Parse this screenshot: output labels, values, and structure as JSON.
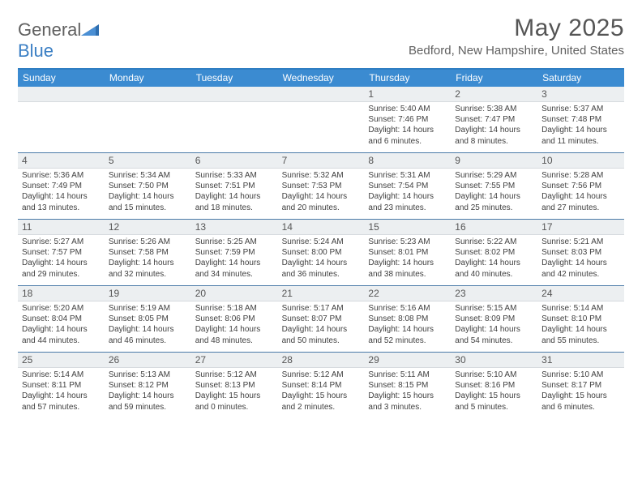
{
  "logo": {
    "text_a": "General",
    "text_b": "Blue"
  },
  "title": "May 2025",
  "location": "Bedford, New Hampshire, United States",
  "colors": {
    "header_bg": "#3b8bd1",
    "header_border_top": "#2f7ec2",
    "numband_bg": "#eceff1",
    "week_divider": "#4a7aa8",
    "text": "#404040",
    "background": "#ffffff"
  },
  "dayNames": [
    "Sunday",
    "Monday",
    "Tuesday",
    "Wednesday",
    "Thursday",
    "Friday",
    "Saturday"
  ],
  "weeks": [
    {
      "nums": [
        "",
        "",
        "",
        "",
        "1",
        "2",
        "3"
      ],
      "cells": [
        {
          "blank": true
        },
        {
          "blank": true
        },
        {
          "blank": true
        },
        {
          "blank": true
        },
        {
          "sunrise": "Sunrise: 5:40 AM",
          "sunset": "Sunset: 7:46 PM",
          "daylight": "Daylight: 14 hours and 6 minutes."
        },
        {
          "sunrise": "Sunrise: 5:38 AM",
          "sunset": "Sunset: 7:47 PM",
          "daylight": "Daylight: 14 hours and 8 minutes."
        },
        {
          "sunrise": "Sunrise: 5:37 AM",
          "sunset": "Sunset: 7:48 PM",
          "daylight": "Daylight: 14 hours and 11 minutes."
        }
      ]
    },
    {
      "nums": [
        "4",
        "5",
        "6",
        "7",
        "8",
        "9",
        "10"
      ],
      "cells": [
        {
          "sunrise": "Sunrise: 5:36 AM",
          "sunset": "Sunset: 7:49 PM",
          "daylight": "Daylight: 14 hours and 13 minutes."
        },
        {
          "sunrise": "Sunrise: 5:34 AM",
          "sunset": "Sunset: 7:50 PM",
          "daylight": "Daylight: 14 hours and 15 minutes."
        },
        {
          "sunrise": "Sunrise: 5:33 AM",
          "sunset": "Sunset: 7:51 PM",
          "daylight": "Daylight: 14 hours and 18 minutes."
        },
        {
          "sunrise": "Sunrise: 5:32 AM",
          "sunset": "Sunset: 7:53 PM",
          "daylight": "Daylight: 14 hours and 20 minutes."
        },
        {
          "sunrise": "Sunrise: 5:31 AM",
          "sunset": "Sunset: 7:54 PM",
          "daylight": "Daylight: 14 hours and 23 minutes."
        },
        {
          "sunrise": "Sunrise: 5:29 AM",
          "sunset": "Sunset: 7:55 PM",
          "daylight": "Daylight: 14 hours and 25 minutes."
        },
        {
          "sunrise": "Sunrise: 5:28 AM",
          "sunset": "Sunset: 7:56 PM",
          "daylight": "Daylight: 14 hours and 27 minutes."
        }
      ]
    },
    {
      "nums": [
        "11",
        "12",
        "13",
        "14",
        "15",
        "16",
        "17"
      ],
      "cells": [
        {
          "sunrise": "Sunrise: 5:27 AM",
          "sunset": "Sunset: 7:57 PM",
          "daylight": "Daylight: 14 hours and 29 minutes."
        },
        {
          "sunrise": "Sunrise: 5:26 AM",
          "sunset": "Sunset: 7:58 PM",
          "daylight": "Daylight: 14 hours and 32 minutes."
        },
        {
          "sunrise": "Sunrise: 5:25 AM",
          "sunset": "Sunset: 7:59 PM",
          "daylight": "Daylight: 14 hours and 34 minutes."
        },
        {
          "sunrise": "Sunrise: 5:24 AM",
          "sunset": "Sunset: 8:00 PM",
          "daylight": "Daylight: 14 hours and 36 minutes."
        },
        {
          "sunrise": "Sunrise: 5:23 AM",
          "sunset": "Sunset: 8:01 PM",
          "daylight": "Daylight: 14 hours and 38 minutes."
        },
        {
          "sunrise": "Sunrise: 5:22 AM",
          "sunset": "Sunset: 8:02 PM",
          "daylight": "Daylight: 14 hours and 40 minutes."
        },
        {
          "sunrise": "Sunrise: 5:21 AM",
          "sunset": "Sunset: 8:03 PM",
          "daylight": "Daylight: 14 hours and 42 minutes."
        }
      ]
    },
    {
      "nums": [
        "18",
        "19",
        "20",
        "21",
        "22",
        "23",
        "24"
      ],
      "cells": [
        {
          "sunrise": "Sunrise: 5:20 AM",
          "sunset": "Sunset: 8:04 PM",
          "daylight": "Daylight: 14 hours and 44 minutes."
        },
        {
          "sunrise": "Sunrise: 5:19 AM",
          "sunset": "Sunset: 8:05 PM",
          "daylight": "Daylight: 14 hours and 46 minutes."
        },
        {
          "sunrise": "Sunrise: 5:18 AM",
          "sunset": "Sunset: 8:06 PM",
          "daylight": "Daylight: 14 hours and 48 minutes."
        },
        {
          "sunrise": "Sunrise: 5:17 AM",
          "sunset": "Sunset: 8:07 PM",
          "daylight": "Daylight: 14 hours and 50 minutes."
        },
        {
          "sunrise": "Sunrise: 5:16 AM",
          "sunset": "Sunset: 8:08 PM",
          "daylight": "Daylight: 14 hours and 52 minutes."
        },
        {
          "sunrise": "Sunrise: 5:15 AM",
          "sunset": "Sunset: 8:09 PM",
          "daylight": "Daylight: 14 hours and 54 minutes."
        },
        {
          "sunrise": "Sunrise: 5:14 AM",
          "sunset": "Sunset: 8:10 PM",
          "daylight": "Daylight: 14 hours and 55 minutes."
        }
      ]
    },
    {
      "nums": [
        "25",
        "26",
        "27",
        "28",
        "29",
        "30",
        "31"
      ],
      "cells": [
        {
          "sunrise": "Sunrise: 5:14 AM",
          "sunset": "Sunset: 8:11 PM",
          "daylight": "Daylight: 14 hours and 57 minutes."
        },
        {
          "sunrise": "Sunrise: 5:13 AM",
          "sunset": "Sunset: 8:12 PM",
          "daylight": "Daylight: 14 hours and 59 minutes."
        },
        {
          "sunrise": "Sunrise: 5:12 AM",
          "sunset": "Sunset: 8:13 PM",
          "daylight": "Daylight: 15 hours and 0 minutes."
        },
        {
          "sunrise": "Sunrise: 5:12 AM",
          "sunset": "Sunset: 8:14 PM",
          "daylight": "Daylight: 15 hours and 2 minutes."
        },
        {
          "sunrise": "Sunrise: 5:11 AM",
          "sunset": "Sunset: 8:15 PM",
          "daylight": "Daylight: 15 hours and 3 minutes."
        },
        {
          "sunrise": "Sunrise: 5:10 AM",
          "sunset": "Sunset: 8:16 PM",
          "daylight": "Daylight: 15 hours and 5 minutes."
        },
        {
          "sunrise": "Sunrise: 5:10 AM",
          "sunset": "Sunset: 8:17 PM",
          "daylight": "Daylight: 15 hours and 6 minutes."
        }
      ]
    }
  ]
}
